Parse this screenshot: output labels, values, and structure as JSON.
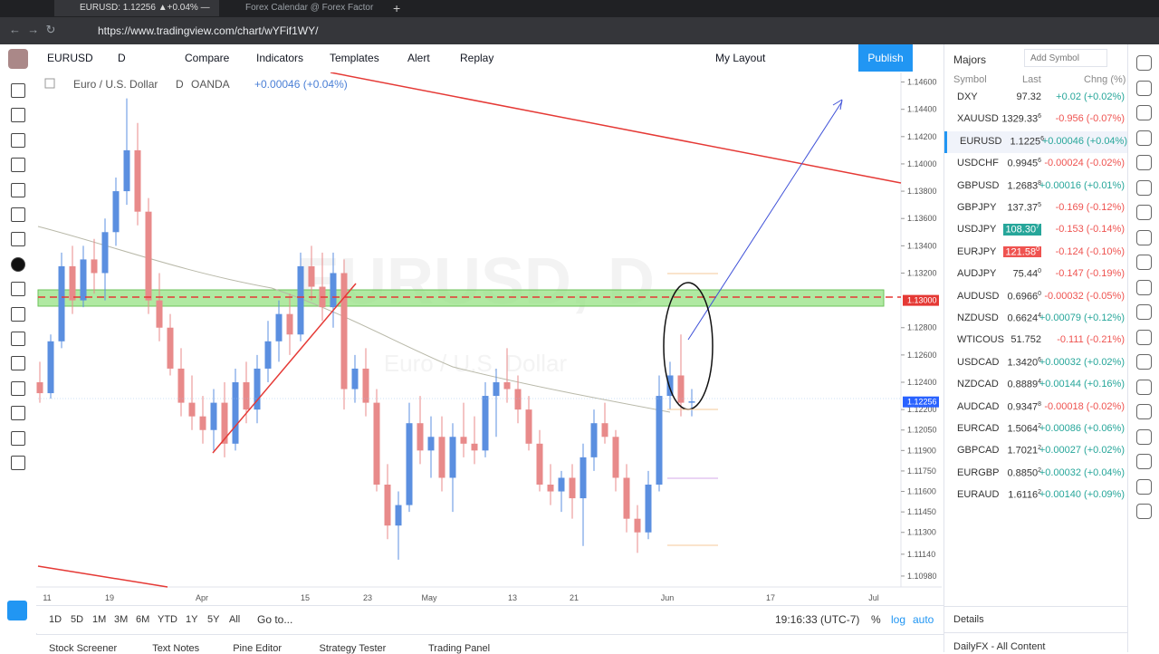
{
  "browser": {
    "tabs": [
      "EURUSD: 1.12256 ▲+0.04% —",
      "Forex Calendar @ Forex Factor"
    ],
    "url": "https://www.tradingview.com/chart/wYFif1WY/"
  },
  "header": {
    "symbol": "EURUSD",
    "interval": "D",
    "compare": "Compare",
    "indicators": "Indicators",
    "templates": "Templates",
    "alert": "Alert",
    "replay": "Replay",
    "layout": "My Layout",
    "publish": "Publish"
  },
  "legend": {
    "name": "Euro / U.S. Dollar",
    "interval": "D",
    "source": "OANDA",
    "change": "+0.00046 (+0.04%)"
  },
  "watermark": {
    "title": "EURUSD, D",
    "subtitle": "Euro / U.S. Dollar"
  },
  "chart": {
    "ylim": [
      1.109,
      1.1467
    ],
    "yticks": [
      {
        "value": 1.146,
        "label": "1.14600"
      },
      {
        "value": 1.144,
        "label": "1.14400"
      },
      {
        "value": 1.142,
        "label": "1.14200"
      },
      {
        "value": 1.14,
        "label": "1.14000"
      },
      {
        "value": 1.138,
        "label": "1.13800"
      },
      {
        "value": 1.136,
        "label": "1.13600"
      },
      {
        "value": 1.134,
        "label": "1.13400"
      },
      {
        "value": 1.132,
        "label": "1.13200"
      },
      {
        "value": 1.128,
        "label": "1.12800"
      },
      {
        "value": 1.126,
        "label": "1.12600"
      },
      {
        "value": 1.124,
        "label": "1.12400"
      },
      {
        "value": 1.122,
        "label": "1.12200"
      },
      {
        "value": 1.1205,
        "label": "1.12050"
      },
      {
        "value": 1.119,
        "label": "1.11900"
      },
      {
        "value": 1.1175,
        "label": "1.11750"
      },
      {
        "value": 1.116,
        "label": "1.11600"
      },
      {
        "value": 1.1145,
        "label": "1.11450"
      },
      {
        "value": 1.113,
        "label": "1.11300"
      },
      {
        "value": 1.1114,
        "label": "1.11140"
      },
      {
        "value": 1.1098,
        "label": "1.10980"
      }
    ],
    "zone_price": {
      "value": 1.13,
      "label": "1.13000"
    },
    "last_price": {
      "value": 1.12256,
      "label": "1.12256"
    },
    "xlabels": [
      "11",
      "19",
      "Apr",
      "15",
      "23",
      "May",
      "13",
      "21",
      "Jun",
      "17",
      "Jul"
    ],
    "candles": [
      [
        1.124,
        1.1255,
        1.1225,
        1.1232
      ],
      [
        1.1232,
        1.1275,
        1.1228,
        1.127
      ],
      [
        1.127,
        1.1335,
        1.1265,
        1.1325
      ],
      [
        1.1325,
        1.134,
        1.129,
        1.13
      ],
      [
        1.13,
        1.134,
        1.1295,
        1.133
      ],
      [
        1.133,
        1.1345,
        1.1305,
        1.132
      ],
      [
        1.132,
        1.136,
        1.13,
        1.135
      ],
      [
        1.135,
        1.139,
        1.134,
        1.138
      ],
      [
        1.138,
        1.1448,
        1.137,
        1.141
      ],
      [
        1.141,
        1.143,
        1.1355,
        1.1365
      ],
      [
        1.1365,
        1.1375,
        1.129,
        1.13
      ],
      [
        1.13,
        1.132,
        1.127,
        1.128
      ],
      [
        1.128,
        1.129,
        1.1245,
        1.125
      ],
      [
        1.125,
        1.1265,
        1.1215,
        1.1225
      ],
      [
        1.1225,
        1.1245,
        1.1205,
        1.1215
      ],
      [
        1.1215,
        1.123,
        1.1195,
        1.1205
      ],
      [
        1.1205,
        1.1235,
        1.119,
        1.1225
      ],
      [
        1.1225,
        1.124,
        1.1185,
        1.1195
      ],
      [
        1.1195,
        1.125,
        1.119,
        1.124
      ],
      [
        1.124,
        1.1255,
        1.121,
        1.122
      ],
      [
        1.122,
        1.126,
        1.121,
        1.125
      ],
      [
        1.125,
        1.1285,
        1.124,
        1.127
      ],
      [
        1.127,
        1.13,
        1.1255,
        1.129
      ],
      [
        1.129,
        1.1305,
        1.126,
        1.1275
      ],
      [
        1.1275,
        1.1335,
        1.127,
        1.1325
      ],
      [
        1.1325,
        1.134,
        1.13,
        1.131
      ],
      [
        1.131,
        1.1335,
        1.1285,
        1.1295
      ],
      [
        1.1295,
        1.1335,
        1.128,
        1.132
      ],
      [
        1.132,
        1.133,
        1.122,
        1.1235
      ],
      [
        1.1235,
        1.126,
        1.1225,
        1.125
      ],
      [
        1.125,
        1.1265,
        1.1215,
        1.1225
      ],
      [
        1.1225,
        1.1235,
        1.116,
        1.1165
      ],
      [
        1.1165,
        1.118,
        1.1125,
        1.1135
      ],
      [
        1.1135,
        1.116,
        1.111,
        1.115
      ],
      [
        1.115,
        1.1225,
        1.1145,
        1.121
      ],
      [
        1.121,
        1.123,
        1.118,
        1.119
      ],
      [
        1.119,
        1.1215,
        1.117,
        1.12
      ],
      [
        1.12,
        1.1215,
        1.116,
        1.117
      ],
      [
        1.117,
        1.121,
        1.1145,
        1.12
      ],
      [
        1.12,
        1.1225,
        1.1185,
        1.1195
      ],
      [
        1.1195,
        1.1215,
        1.118,
        1.119
      ],
      [
        1.119,
        1.124,
        1.1185,
        1.123
      ],
      [
        1.123,
        1.125,
        1.12,
        1.124
      ],
      [
        1.124,
        1.1265,
        1.1225,
        1.1235
      ],
      [
        1.1235,
        1.1245,
        1.121,
        1.122
      ],
      [
        1.122,
        1.123,
        1.119,
        1.1195
      ],
      [
        1.1195,
        1.1205,
        1.116,
        1.1165
      ],
      [
        1.1165,
        1.118,
        1.115,
        1.116
      ],
      [
        1.116,
        1.1175,
        1.1145,
        1.117
      ],
      [
        1.117,
        1.118,
        1.114,
        1.1155
      ],
      [
        1.1155,
        1.1195,
        1.112,
        1.1185
      ],
      [
        1.1185,
        1.122,
        1.1175,
        1.121
      ],
      [
        1.121,
        1.1225,
        1.1195,
        1.12
      ],
      [
        1.12,
        1.1205,
        1.116,
        1.117
      ],
      [
        1.117,
        1.118,
        1.113,
        1.114
      ],
      [
        1.114,
        1.115,
        1.1115,
        1.113
      ],
      [
        1.113,
        1.1175,
        1.1125,
        1.1165
      ],
      [
        1.1165,
        1.1245,
        1.116,
        1.123
      ],
      [
        1.123,
        1.1255,
        1.122,
        1.1245
      ],
      [
        1.1245,
        1.1275,
        1.1215,
        1.1225
      ],
      [
        1.1225,
        1.1235,
        1.1215,
        1.1226
      ]
    ]
  },
  "bottom_bar": {
    "ranges": [
      "1D",
      "5D",
      "1M",
      "3M",
      "6M",
      "YTD",
      "1Y",
      "5Y",
      "All"
    ],
    "goto": "Go to...",
    "clock": "19:16:33 (UTC-7)",
    "percent": "%",
    "log": "log",
    "auto": "auto"
  },
  "bottom_tabs": [
    "Stock Screener",
    "Text Notes",
    "Pine Editor",
    "Strategy Tester",
    "Trading Panel"
  ],
  "watchlist": {
    "title": "Majors",
    "add": "Add Symbol",
    "columns": [
      "Symbol",
      "Last",
      "Chng (%)"
    ],
    "rows": [
      {
        "symbol": "DXY",
        "last": "97.32",
        "last_sup": "",
        "change": "+0.02 (+0.02%)"
      },
      {
        "symbol": "XAUUSD",
        "last": "1329.33",
        "last_sup": "6",
        "change": "-0.956 (-0.07%)"
      },
      {
        "symbol": "EURUSD",
        "last": "1.1225",
        "last_sup": "6",
        "change": "+0.00046 (+0.04%)",
        "selected": true
      },
      {
        "symbol": "USDCHF",
        "last": "0.9945",
        "last_sup": "6",
        "change": "-0.00024 (-0.02%)"
      },
      {
        "symbol": "GBPUSD",
        "last": "1.2683",
        "last_sup": "8",
        "change": "+0.00016 (+0.01%)"
      },
      {
        "symbol": "GBPJPY",
        "last": "137.37",
        "last_sup": "5",
        "change": "-0.169 (-0.12%)"
      },
      {
        "symbol": "USDJPY",
        "last": "108.30",
        "last_sup": "7",
        "change": "-0.153 (-0.14%)",
        "flash": "up"
      },
      {
        "symbol": "EURJPY",
        "last": "121.58",
        "last_sup": "0",
        "change": "-0.124 (-0.10%)",
        "flash": "down"
      },
      {
        "symbol": "AUDJPY",
        "last": "75.44",
        "last_sup": "0",
        "change": "-0.147 (-0.19%)"
      },
      {
        "symbol": "AUDUSD",
        "last": "0.6966",
        "last_sup": "0",
        "change": "-0.00032 (-0.05%)"
      },
      {
        "symbol": "NZDUSD",
        "last": "0.6624",
        "last_sup": "4",
        "change": "+0.00079 (+0.12%)"
      },
      {
        "symbol": "WTICOUS",
        "last": "51.752",
        "last_sup": "",
        "change": "-0.111 (-0.21%)"
      },
      {
        "symbol": "USDCAD",
        "last": "1.3420",
        "last_sup": "6",
        "change": "+0.00032 (+0.02%)"
      },
      {
        "symbol": "NZDCAD",
        "last": "0.8889",
        "last_sup": "4",
        "change": "+0.00144 (+0.16%)"
      },
      {
        "symbol": "AUDCAD",
        "last": "0.9347",
        "last_sup": "8",
        "change": "-0.00018 (-0.02%)"
      },
      {
        "symbol": "EURCAD",
        "last": "1.5064",
        "last_sup": "2",
        "change": "+0.00086 (+0.06%)"
      },
      {
        "symbol": "GBPCAD",
        "last": "1.7021",
        "last_sup": "2",
        "change": "+0.00027 (+0.02%)"
      },
      {
        "symbol": "EURGBP",
        "last": "0.8850",
        "last_sup": "2",
        "change": "+0.00032 (+0.04%)"
      },
      {
        "symbol": "EURAUD",
        "last": "1.6116",
        "last_sup": "2",
        "change": "+0.00140 (+0.09%)"
      }
    ],
    "details": "Details",
    "news": "DailyFX - All Content"
  }
}
